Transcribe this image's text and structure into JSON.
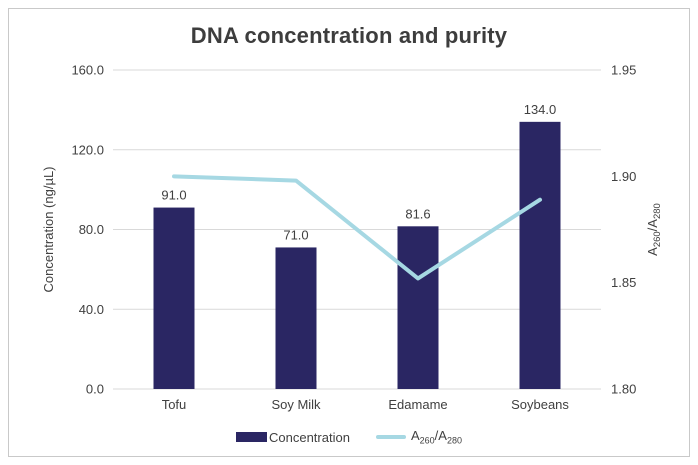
{
  "page": {
    "border_color": "#c9c9c9",
    "background": "#ffffff",
    "text_color": "#404040",
    "grid_color": "#d9d9d9"
  },
  "chart_data": {
    "type": "combo",
    "title": "DNA concentration and purity",
    "categories": [
      "Tofu",
      "Soy Milk",
      "Edamame",
      "Soybeans"
    ],
    "series": [
      {
        "name": "Concentration",
        "type": "bar",
        "axis": "left",
        "values": [
          91.0,
          71.0,
          81.6,
          134.0
        ],
        "labels": [
          "91.0",
          "71.0",
          "81.6",
          "134.0"
        ],
        "color": "#2a2663"
      },
      {
        "name": "A260/A280",
        "name_parts": [
          {
            "text": "A",
            "sub": false
          },
          {
            "text": "260",
            "sub": true
          },
          {
            "text": "/A",
            "sub": false
          },
          {
            "text": "280",
            "sub": true
          }
        ],
        "type": "line",
        "axis": "right",
        "values": [
          1.9,
          1.898,
          1.852,
          1.889
        ],
        "color": "#a6d8e3"
      }
    ],
    "left_axis": {
      "label": "Concentration (ng/µL)",
      "min": 0,
      "max": 160,
      "tick_labels": [
        "0.0",
        "40.0",
        "80.0",
        "120.0",
        "160.0"
      ],
      "tick_values": [
        0,
        40,
        80,
        120,
        160
      ]
    },
    "right_axis": {
      "label_parts": [
        {
          "text": "A",
          "sub": false
        },
        {
          "text": "260",
          "sub": true
        },
        {
          "text": "/A",
          "sub": false
        },
        {
          "text": "280",
          "sub": true
        }
      ],
      "min": 1.8,
      "max": 1.95,
      "tick_labels": [
        "1.80",
        "1.85",
        "1.90",
        "1.95"
      ],
      "tick_values": [
        1.8,
        1.85,
        1.9,
        1.95
      ]
    },
    "grid": true,
    "legend_position": "bottom"
  }
}
